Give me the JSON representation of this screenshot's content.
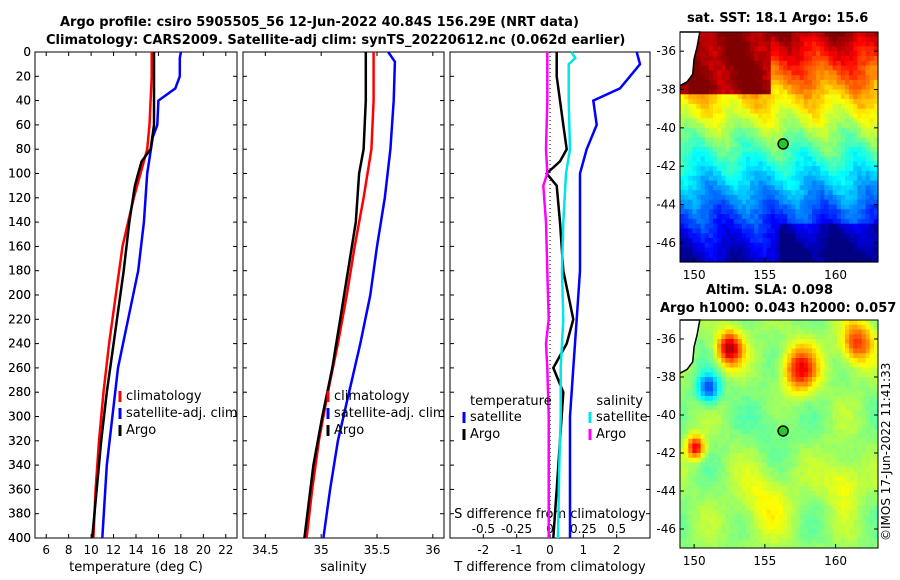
{
  "header": {
    "title_line1": "Argo profile: csiro 5905505_56 12-Jun-2022 40.84S 156.29E (NRT data)",
    "title_line2": "Climatology: CARS2009. Satellite-adj clim: synTS_20220612.nc (0.062d earlier)"
  },
  "credit": "©IMOS 17-Jun-2022 11:41:33",
  "colors": {
    "climatology": "#ff0000",
    "satellite": "#0000ff",
    "argo": "#000000",
    "t_satellite": "#0000ff",
    "s_satellite": "#00e5e5",
    "s_argo": "#ff00ff",
    "land_coast": "#000000",
    "marker": "#22cc22"
  },
  "chart_data": [
    {
      "id": "temperature",
      "type": "line",
      "xlabel": "temperature (deg C)",
      "ylabel": "",
      "xlim": [
        5,
        23
      ],
      "ylim": [
        400,
        0
      ],
      "xticks": [
        6,
        8,
        10,
        12,
        14,
        16,
        18,
        20,
        22
      ],
      "yticks": [
        0,
        20,
        40,
        60,
        80,
        100,
        120,
        140,
        160,
        180,
        200,
        220,
        240,
        260,
        280,
        300,
        320,
        340,
        360,
        380,
        400
      ],
      "legend": [
        "climatology",
        "satellite-adj. clim",
        "Argo"
      ],
      "legend_position": "lower-right",
      "series": [
        {
          "name": "climatology",
          "color_key": "climatology",
          "depth": [
            0,
            20,
            40,
            60,
            80,
            100,
            120,
            140,
            160,
            200,
            240,
            280,
            320,
            360,
            400
          ],
          "values": [
            15.4,
            15.4,
            15.3,
            15.2,
            15.0,
            14.4,
            13.8,
            13.3,
            12.8,
            12.2,
            11.6,
            11.1,
            10.7,
            10.4,
            10.2
          ]
        },
        {
          "name": "satellite-adj. clim",
          "color_key": "satellite",
          "depth": [
            0,
            5,
            20,
            30,
            40,
            60,
            70,
            100,
            140,
            180,
            220,
            260,
            300,
            340,
            400
          ],
          "values": [
            18.0,
            17.9,
            17.9,
            17.5,
            16.0,
            15.9,
            15.5,
            15.0,
            14.7,
            14.2,
            13.3,
            12.4,
            11.9,
            11.4,
            11.0
          ]
        },
        {
          "name": "Argo",
          "color_key": "argo",
          "depth": [
            0,
            20,
            40,
            60,
            80,
            90,
            100,
            110,
            140,
            180,
            240,
            260,
            280,
            320,
            360,
            400
          ],
          "values": [
            15.6,
            15.6,
            15.6,
            15.6,
            15.3,
            14.5,
            14.2,
            13.9,
            13.4,
            12.9,
            12.0,
            11.7,
            11.4,
            10.9,
            10.5,
            10.1
          ]
        }
      ]
    },
    {
      "id": "salinity",
      "type": "line",
      "xlabel": "salinity",
      "ylabel": "",
      "xlim": [
        34.3,
        36.1
      ],
      "ylim": [
        400,
        0
      ],
      "xticks": [
        34.5,
        35,
        35.5,
        36
      ],
      "xtick_labels": [
        "34.5",
        "35",
        "35.5",
        "36"
      ],
      "legend": [
        "climatology",
        "satellite-adj. clim",
        "Argo"
      ],
      "legend_position": "lower-right",
      "series": [
        {
          "name": "climatology",
          "color_key": "climatology",
          "depth": [
            0,
            40,
            80,
            120,
            160,
            200,
            240,
            280,
            320,
            360,
            400
          ],
          "values": [
            35.47,
            35.47,
            35.45,
            35.38,
            35.3,
            35.23,
            35.15,
            35.06,
            34.98,
            34.92,
            34.87
          ]
        },
        {
          "name": "satellite-adj. clim",
          "color_key": "satellite",
          "depth": [
            0,
            8,
            40,
            80,
            120,
            160,
            200,
            240,
            280,
            320,
            360,
            400
          ],
          "values": [
            35.6,
            35.66,
            35.65,
            35.62,
            35.57,
            35.5,
            35.44,
            35.35,
            35.25,
            35.15,
            35.08,
            35.02
          ]
        },
        {
          "name": "Argo",
          "color_key": "argo",
          "depth": [
            0,
            40,
            80,
            100,
            140,
            180,
            220,
            260,
            300,
            340,
            400
          ],
          "values": [
            35.4,
            35.4,
            35.38,
            35.34,
            35.31,
            35.24,
            35.17,
            35.1,
            35.01,
            34.93,
            34.85
          ]
        }
      ]
    },
    {
      "id": "difference",
      "type": "line",
      "xlabel": "T difference from climatology",
      "xlabel2": "S difference from climatology",
      "xlim": [
        -3,
        3
      ],
      "ylim": [
        400,
        0
      ],
      "xticks": [
        -2,
        -1,
        0,
        1,
        2
      ],
      "xticks_s": [
        -0.5,
        -0.25,
        0,
        0.25,
        0.5
      ],
      "xtick_labels_s": [
        "-0.5",
        "-0.25",
        "0",
        "0.25",
        "0.5"
      ],
      "s_to_t_scale": 4,
      "legend_temperature": {
        "title": "temperature",
        "items": [
          "satellite",
          "Argo"
        ]
      },
      "legend_salinity": {
        "title": "salinity",
        "items": [
          "satellite",
          "Argo"
        ]
      },
      "series": [
        {
          "name": "T satellite",
          "color_key": "t_satellite",
          "depth": [
            0,
            10,
            20,
            30,
            40,
            60,
            80,
            100,
            140,
            180,
            220,
            260,
            300,
            340,
            400
          ],
          "values": [
            2.6,
            2.7,
            2.4,
            2.1,
            1.3,
            1.4,
            1.1,
            0.9,
            0.9,
            0.9,
            0.8,
            0.7,
            0.6,
            0.6,
            0.6
          ]
        },
        {
          "name": "T Argo",
          "color_key": "argo",
          "depth": [
            0,
            20,
            40,
            60,
            80,
            90,
            100,
            110,
            140,
            180,
            220,
            240,
            260,
            280,
            320,
            360,
            400
          ],
          "values": [
            0.2,
            0.2,
            0.3,
            0.4,
            0.5,
            0.3,
            -0.1,
            0.2,
            0.3,
            0.4,
            0.7,
            0.5,
            0.1,
            0.4,
            0.3,
            0.2,
            0.1
          ]
        },
        {
          "name": "S satellite",
          "color_key": "s_satellite",
          "depth": [
            0,
            5,
            10,
            40,
            80,
            100,
            140,
            180,
            220,
            260,
            300,
            340,
            400
          ],
          "values": [
            0.16,
            0.19,
            0.14,
            0.14,
            0.15,
            0.12,
            0.1,
            0.09,
            0.1,
            0.08,
            0.08,
            0.07,
            0.06
          ]
        },
        {
          "name": "S Argo",
          "color_key": "s_argo",
          "depth": [
            0,
            40,
            80,
            100,
            110,
            140,
            180,
            220,
            240,
            260,
            300,
            340,
            400
          ],
          "values": [
            -0.02,
            -0.02,
            -0.03,
            -0.02,
            -0.05,
            -0.03,
            -0.02,
            -0.01,
            -0.03,
            -0.02,
            -0.01,
            -0.01,
            -0.01
          ]
        }
      ]
    },
    {
      "id": "sst_map",
      "type": "heatmap",
      "title": "sat. SST: 18.1 Argo: 15.6",
      "xlim": [
        149,
        163
      ],
      "ylim": [
        -47,
        -35
      ],
      "xticks": [
        150,
        155,
        160
      ],
      "yticks": [
        -36,
        -38,
        -40,
        -42,
        -44,
        -46
      ],
      "argo_position": {
        "lon": 156.29,
        "lat": -40.84
      }
    },
    {
      "id": "sla_map",
      "type": "heatmap",
      "title_line1": "Altim. SLA: 0.098",
      "title_line2": "Argo h1000: 0.043 h2000: 0.057",
      "xlim": [
        149,
        163
      ],
      "ylim": [
        -47,
        -35
      ],
      "xticks": [
        150,
        155,
        160
      ],
      "yticks": [
        -36,
        -38,
        -40,
        -42,
        -44,
        -46
      ],
      "argo_position": {
        "lon": 156.29,
        "lat": -40.84
      }
    }
  ]
}
